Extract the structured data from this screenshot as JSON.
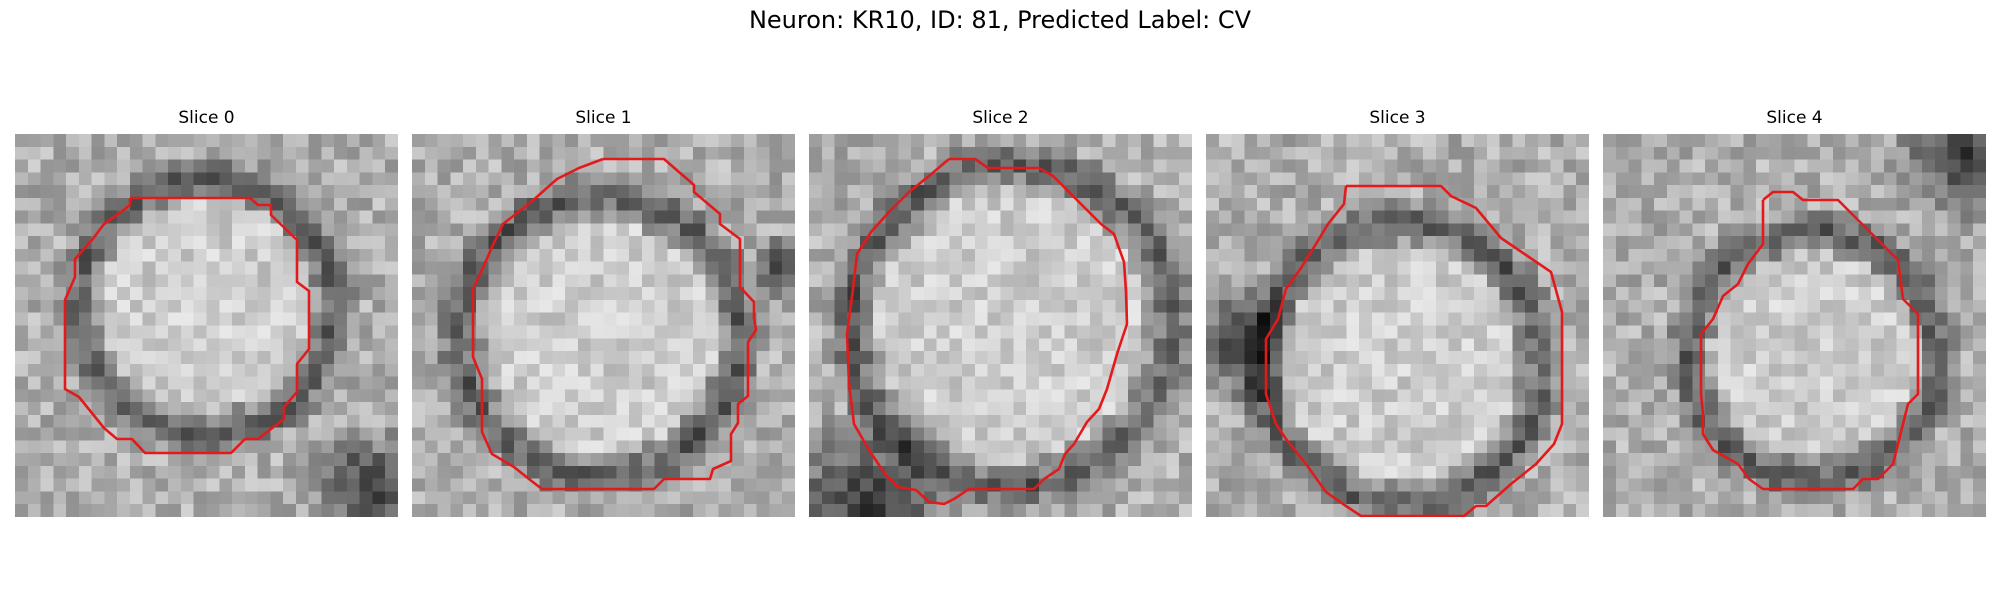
{
  "figure": {
    "suptitle": "Neuron: KR10, ID: 81, Predicted Label: CV",
    "contour_color": "#e31a1c"
  },
  "panels": [
    {
      "title": "Slice 0"
    },
    {
      "title": "Slice 1"
    },
    {
      "title": "Slice 2"
    },
    {
      "title": "Slice 3"
    },
    {
      "title": "Slice 4"
    }
  ]
}
